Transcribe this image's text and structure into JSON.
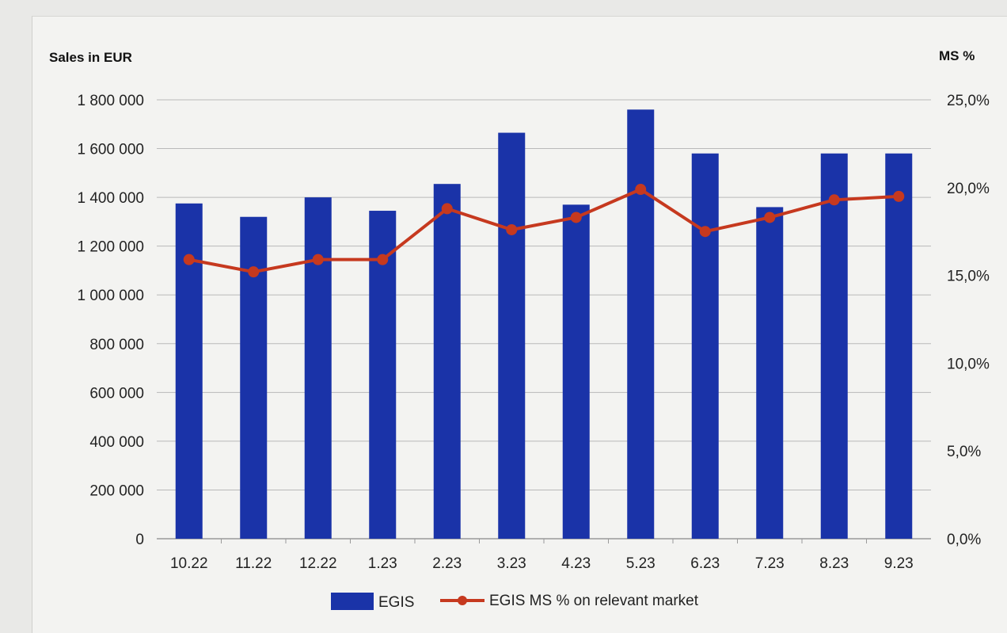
{
  "chart_data": {
    "type": "bar+line",
    "left_axis_title": "Sales in EUR",
    "right_axis_title": "MS %",
    "categories": [
      "10.22",
      "11.22",
      "12.22",
      "1.23",
      "2.23",
      "3.23",
      "4.23",
      "5.23",
      "6.23",
      "7.23",
      "8.23",
      "9.23"
    ],
    "series": [
      {
        "name": "EGIS",
        "kind": "bar",
        "axis": "left",
        "values": [
          1375000,
          1320000,
          1400000,
          1345000,
          1455000,
          1665000,
          1370000,
          1760000,
          1580000,
          1360000,
          1580000,
          1580000
        ]
      },
      {
        "name": "EGIS MS % on relevant market",
        "kind": "line",
        "axis": "right",
        "values": [
          15.9,
          15.2,
          15.9,
          15.9,
          18.8,
          17.6,
          18.3,
          19.9,
          17.5,
          18.3,
          19.3,
          19.5
        ]
      }
    ],
    "left_ticks": [
      "0",
      "200 000",
      "400 000",
      "600 000",
      "800 000",
      "1 000 000",
      "1 200 000",
      "1 400 000",
      "1 600 000",
      "1 800 000"
    ],
    "right_ticks": [
      "0,0%",
      "5,0%",
      "10,0%",
      "15,0%",
      "20,0%",
      "25,0%"
    ],
    "ylim_left": [
      0,
      1800000
    ],
    "ylim_right": [
      0,
      25
    ],
    "legend_position": "bottom",
    "colors": {
      "bar": "#1a33a8",
      "line": "#c6391f",
      "grid": "#b9b9b9"
    }
  }
}
